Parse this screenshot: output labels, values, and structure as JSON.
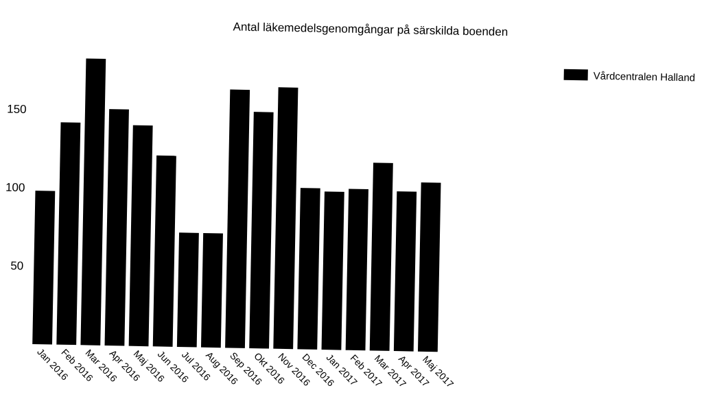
{
  "chart_data": {
    "type": "bar",
    "title": "Antal läkemedelsgenomgångar på särskilda boenden",
    "xlabel": "",
    "ylabel": "",
    "categories": [
      "Jan 2016",
      "Feb 2016",
      "Mar 2016",
      "Apr 2016",
      "Maj 2016",
      "Jun 2016",
      "Jul 2016",
      "Aug 2016",
      "Sep 2016",
      "Okt 2016",
      "Nov 2016",
      "Dec 2016",
      "Jan 2017",
      "Feb 2017",
      "Mar 2017",
      "Apr 2017",
      "Maj 2017"
    ],
    "series": [
      {
        "name": "Vårdcentralen Halland",
        "color": "#000000",
        "values": [
          98,
          142,
          183,
          151,
          141,
          122,
          73,
          73,
          165,
          151,
          167,
          103,
          101,
          103,
          120,
          102,
          108
        ]
      }
    ],
    "ylim": [
      0,
      190
    ],
    "yticks": [
      50,
      100,
      150
    ],
    "grid": false,
    "legend": "top-right"
  }
}
